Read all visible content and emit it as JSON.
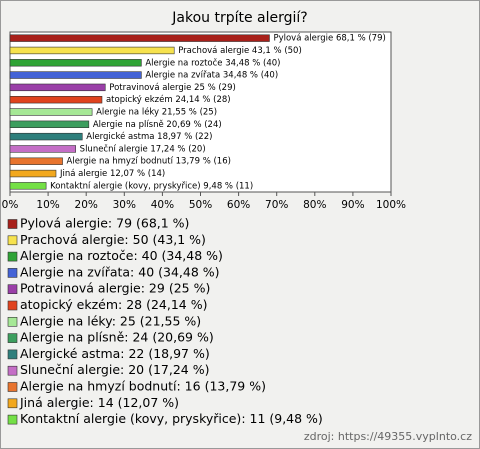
{
  "chart_data": {
    "type": "bar",
    "orientation": "horizontal",
    "title": "Jakou trpíte alergií?",
    "values": [
      68.1,
      43.1,
      34.48,
      34.48,
      25,
      24.14,
      21.55,
      20.69,
      18.97,
      17.24,
      13.79,
      12.07,
      9.48
    ],
    "value_labels": [
      "Pylová alergie 68,1 % (79)",
      "Prachová alergie 43,1 % (50)",
      "Alergie na roztoče 34,48 % (40)",
      "Alergie na zvířata 34,48 % (40)",
      "Potravinová alergie 25 % (29)",
      "atopický ekzém 24,14 % (28)",
      "Alergie na léky 21,55 % (25)",
      "Alergie na plísně 20,69 % (24)",
      "Alergické astma 18,97 % (22)",
      "Sluneční alergie 17,24 % (20)",
      "Alergie na hmyzí bodnutí 13,79 % (16)",
      "Jiná alergie 12,07 % (14)",
      "Kontaktní alergie (kovy, pryskyřice) 9,48 % (11)"
    ],
    "legend_labels": [
      "Pylová alergie: 79 (68,1 %)",
      "Prachová alergie: 50 (43,1 %)",
      "Alergie na roztoče: 40 (34,48 %)",
      "Alergie na zvířata: 40 (34,48 %)",
      "Potravinová alergie: 29 (25 %)",
      "atopický ekzém: 28 (24,14 %)",
      "Alergie na léky: 25 (21,55 %)",
      "Alergie na plísně: 24 (20,69 %)",
      "Alergické astma: 22 (18,97 %)",
      "Sluneční alergie: 20 (17,24 %)",
      "Alergie na hmyzí bodnutí: 16 (13,79 %)",
      "Jiná alergie: 14 (12,07 %)",
      "Kontaktní alergie (kovy, pryskyřice): 11 (9,48 %)"
    ],
    "colors": [
      "#a8201a",
      "#f6e24e",
      "#2fa336",
      "#4463d6",
      "#9a3fa8",
      "#e0431e",
      "#a6e896",
      "#3c9e5e",
      "#2e7f7c",
      "#c46ec6",
      "#e8742e",
      "#f2a81e",
      "#74e046"
    ],
    "xlim": [
      0,
      100
    ],
    "xticks": [
      {
        "value": 0,
        "label": "0%"
      },
      {
        "value": 10,
        "label": "10%"
      },
      {
        "value": 20,
        "label": "20%"
      },
      {
        "value": 30,
        "label": "30%"
      },
      {
        "value": 40,
        "label": "40%"
      },
      {
        "value": 50,
        "label": "50%"
      },
      {
        "value": 60,
        "label": "60%"
      },
      {
        "value": 70,
        "label": "70%"
      },
      {
        "value": 80,
        "label": "80%"
      },
      {
        "value": 90,
        "label": "90%"
      },
      {
        "value": 100,
        "label": "100%"
      }
    ],
    "source": "zdroj: https://49355.vyplnto.cz"
  }
}
